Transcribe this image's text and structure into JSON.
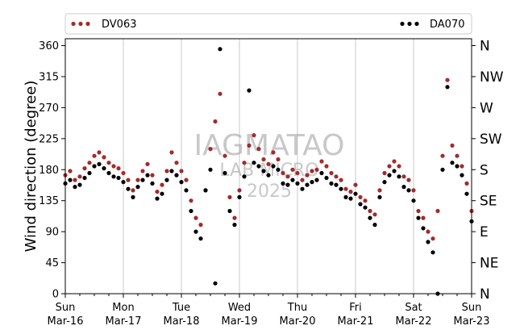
{
  "chart_data": {
    "type": "scatter",
    "ylabel": "Wind direction (degree)",
    "ylim": [
      0,
      370
    ],
    "yticks": [
      0,
      45,
      90,
      135,
      180,
      225,
      270,
      315,
      360
    ],
    "y2_labels": [
      {
        "value": 0,
        "label": "N"
      },
      {
        "value": 45,
        "label": "NE"
      },
      {
        "value": 90,
        "label": "E"
      },
      {
        "value": 135,
        "label": "SE"
      },
      {
        "value": 180,
        "label": "S"
      },
      {
        "value": 225,
        "label": "SW"
      },
      {
        "value": 270,
        "label": "W"
      },
      {
        "value": 315,
        "label": "NW"
      },
      {
        "value": 360,
        "label": "N"
      }
    ],
    "xlim": [
      "2025-03-16",
      "2025-03-23"
    ],
    "xticks": [
      {
        "day": "Sun",
        "date": "Mar-16"
      },
      {
        "day": "Mon",
        "date": "Mar-17"
      },
      {
        "day": "Tue",
        "date": "Mar-18"
      },
      {
        "day": "Wed",
        "date": "Mar-19"
      },
      {
        "day": "Thu",
        "date": "Mar-20"
      },
      {
        "day": "Fri",
        "date": "Mar-21"
      },
      {
        "day": "Sat",
        "date": "Mar-22"
      },
      {
        "day": "Sun",
        "date": "Mar-23"
      }
    ],
    "grid": "vertical",
    "legend_position": "top",
    "watermark": [
      "IAGMATAO",
      "LAB MICRO",
      "2025"
    ],
    "series": [
      {
        "name": "DV063",
        "color": "#a52a2a",
        "points": [
          [
            "2025-03-16T00:00",
            172
          ],
          [
            "2025-03-16T02:00",
            178
          ],
          [
            "2025-03-16T04:00",
            165
          ],
          [
            "2025-03-16T06:00",
            170
          ],
          [
            "2025-03-16T08:00",
            182
          ],
          [
            "2025-03-16T10:00",
            190
          ],
          [
            "2025-03-16T12:00",
            200
          ],
          [
            "2025-03-16T14:00",
            205
          ],
          [
            "2025-03-16T16:00",
            198
          ],
          [
            "2025-03-16T18:00",
            190
          ],
          [
            "2025-03-16T20:00",
            185
          ],
          [
            "2025-03-16T22:00",
            182
          ],
          [
            "2025-03-17T00:00",
            175
          ],
          [
            "2025-03-17T02:00",
            165
          ],
          [
            "2025-03-17T04:00",
            150
          ],
          [
            "2025-03-17T06:00",
            165
          ],
          [
            "2025-03-17T08:00",
            178
          ],
          [
            "2025-03-17T10:00",
            188
          ],
          [
            "2025-03-17T12:00",
            172
          ],
          [
            "2025-03-17T14:00",
            148
          ],
          [
            "2025-03-17T16:00",
            158
          ],
          [
            "2025-03-17T18:00",
            178
          ],
          [
            "2025-03-17T20:00",
            205
          ],
          [
            "2025-03-17T22:00",
            190
          ],
          [
            "2025-03-18T00:00",
            178
          ],
          [
            "2025-03-18T02:00",
            165
          ],
          [
            "2025-03-18T04:00",
            135
          ],
          [
            "2025-03-18T06:00",
            110
          ],
          [
            "2025-03-18T08:00",
            100
          ],
          [
            "2025-03-18T10:00",
            150
          ],
          [
            "2025-03-18T12:00",
            210
          ],
          [
            "2025-03-18T14:00",
            250
          ],
          [
            "2025-03-18T16:00",
            290
          ],
          [
            "2025-03-18T18:00",
            200
          ],
          [
            "2025-03-18T20:00",
            140
          ],
          [
            "2025-03-18T22:00",
            110
          ],
          [
            "2025-03-19T00:00",
            150
          ],
          [
            "2025-03-19T02:00",
            190
          ],
          [
            "2025-03-19T04:00",
            215
          ],
          [
            "2025-03-19T06:00",
            230
          ],
          [
            "2025-03-19T08:00",
            210
          ],
          [
            "2025-03-19T10:00",
            195
          ],
          [
            "2025-03-19T12:00",
            188
          ],
          [
            "2025-03-19T14:00",
            205
          ],
          [
            "2025-03-19T16:00",
            195
          ],
          [
            "2025-03-19T18:00",
            175
          ],
          [
            "2025-03-19T20:00",
            170
          ],
          [
            "2025-03-19T22:00",
            180
          ],
          [
            "2025-03-20T00:00",
            175
          ],
          [
            "2025-03-20T02:00",
            165
          ],
          [
            "2025-03-20T04:00",
            172
          ],
          [
            "2025-03-20T06:00",
            178
          ],
          [
            "2025-03-20T08:00",
            180
          ],
          [
            "2025-03-20T10:00",
            192
          ],
          [
            "2025-03-20T12:00",
            185
          ],
          [
            "2025-03-20T14:00",
            175
          ],
          [
            "2025-03-20T16:00",
            170
          ],
          [
            "2025-03-20T18:00",
            165
          ],
          [
            "2025-03-20T20:00",
            152
          ],
          [
            "2025-03-20T22:00",
            148
          ],
          [
            "2025-03-21T00:00",
            158
          ],
          [
            "2025-03-21T02:00",
            140
          ],
          [
            "2025-03-21T04:00",
            135
          ],
          [
            "2025-03-21T06:00",
            120
          ],
          [
            "2025-03-21T08:00",
            115
          ],
          [
            "2025-03-21T10:00",
            150
          ],
          [
            "2025-03-21T12:00",
            175
          ],
          [
            "2025-03-21T14:00",
            185
          ],
          [
            "2025-03-21T16:00",
            192
          ],
          [
            "2025-03-21T18:00",
            185
          ],
          [
            "2025-03-21T20:00",
            170
          ],
          [
            "2025-03-21T22:00",
            165
          ],
          [
            "2025-03-22T00:00",
            150
          ],
          [
            "2025-03-22T02:00",
            120
          ],
          [
            "2025-03-22T04:00",
            110
          ],
          [
            "2025-03-22T06:00",
            90
          ],
          [
            "2025-03-22T08:00",
            80
          ],
          [
            "2025-03-22T10:00",
            120
          ],
          [
            "2025-03-22T12:00",
            200
          ],
          [
            "2025-03-22T14:00",
            310
          ],
          [
            "2025-03-22T16:00",
            215
          ],
          [
            "2025-03-22T18:00",
            200
          ],
          [
            "2025-03-22T20:00",
            185
          ],
          [
            "2025-03-22T22:00",
            160
          ],
          [
            "2025-03-23T00:00",
            120
          ]
        ]
      },
      {
        "name": "DA070",
        "color": "#000000",
        "points": [
          [
            "2025-03-16T00:00",
            160
          ],
          [
            "2025-03-16T02:00",
            165
          ],
          [
            "2025-03-16T04:00",
            155
          ],
          [
            "2025-03-16T06:00",
            158
          ],
          [
            "2025-03-16T08:00",
            168
          ],
          [
            "2025-03-16T10:00",
            175
          ],
          [
            "2025-03-16T12:00",
            185
          ],
          [
            "2025-03-16T14:00",
            188
          ],
          [
            "2025-03-16T16:00",
            182
          ],
          [
            "2025-03-16T18:00",
            175
          ],
          [
            "2025-03-16T20:00",
            170
          ],
          [
            "2025-03-16T22:00",
            168
          ],
          [
            "2025-03-17T00:00",
            162
          ],
          [
            "2025-03-17T02:00",
            152
          ],
          [
            "2025-03-17T04:00",
            140
          ],
          [
            "2025-03-17T06:00",
            155
          ],
          [
            "2025-03-17T08:00",
            165
          ],
          [
            "2025-03-17T10:00",
            172
          ],
          [
            "2025-03-17T12:00",
            160
          ],
          [
            "2025-03-17T14:00",
            138
          ],
          [
            "2025-03-17T16:00",
            145
          ],
          [
            "2025-03-17T18:00",
            165
          ],
          [
            "2025-03-17T20:00",
            178
          ],
          [
            "2025-03-17T22:00",
            172
          ],
          [
            "2025-03-18T00:00",
            162
          ],
          [
            "2025-03-18T02:00",
            150
          ],
          [
            "2025-03-18T04:00",
            120
          ],
          [
            "2025-03-18T06:00",
            90
          ],
          [
            "2025-03-18T08:00",
            80
          ],
          [
            "2025-03-18T10:00",
            150
          ],
          [
            "2025-03-18T12:00",
            180
          ],
          [
            "2025-03-18T14:00",
            15
          ],
          [
            "2025-03-18T16:00",
            355
          ],
          [
            "2025-03-18T18:00",
            175
          ],
          [
            "2025-03-18T20:00",
            120
          ],
          [
            "2025-03-18T22:00",
            100
          ],
          [
            "2025-03-19T00:00",
            140
          ],
          [
            "2025-03-19T02:00",
            170
          ],
          [
            "2025-03-19T04:00",
            295
          ],
          [
            "2025-03-19T06:00",
            190
          ],
          [
            "2025-03-19T08:00",
            185
          ],
          [
            "2025-03-19T10:00",
            178
          ],
          [
            "2025-03-19T12:00",
            172
          ],
          [
            "2025-03-19T14:00",
            185
          ],
          [
            "2025-03-19T16:00",
            180
          ],
          [
            "2025-03-19T18:00",
            160
          ],
          [
            "2025-03-19T20:00",
            158
          ],
          [
            "2025-03-19T22:00",
            165
          ],
          [
            "2025-03-20T00:00",
            160
          ],
          [
            "2025-03-20T02:00",
            152
          ],
          [
            "2025-03-20T04:00",
            158
          ],
          [
            "2025-03-20T06:00",
            162
          ],
          [
            "2025-03-20T08:00",
            165
          ],
          [
            "2025-03-20T10:00",
            175
          ],
          [
            "2025-03-20T12:00",
            168
          ],
          [
            "2025-03-20T14:00",
            160
          ],
          [
            "2025-03-20T16:00",
            158
          ],
          [
            "2025-03-20T18:00",
            152
          ],
          [
            "2025-03-20T20:00",
            140
          ],
          [
            "2025-03-20T22:00",
            138
          ],
          [
            "2025-03-21T00:00",
            145
          ],
          [
            "2025-03-21T02:00",
            130
          ],
          [
            "2025-03-21T04:00",
            125
          ],
          [
            "2025-03-21T06:00",
            110
          ],
          [
            "2025-03-21T08:00",
            100
          ],
          [
            "2025-03-21T10:00",
            140
          ],
          [
            "2025-03-21T12:00",
            162
          ],
          [
            "2025-03-21T14:00",
            172
          ],
          [
            "2025-03-21T16:00",
            178
          ],
          [
            "2025-03-21T18:00",
            170
          ],
          [
            "2025-03-21T20:00",
            155
          ],
          [
            "2025-03-21T22:00",
            150
          ],
          [
            "2025-03-22T00:00",
            135
          ],
          [
            "2025-03-22T02:00",
            110
          ],
          [
            "2025-03-22T04:00",
            95
          ],
          [
            "2025-03-22T06:00",
            75
          ],
          [
            "2025-03-22T08:00",
            60
          ],
          [
            "2025-03-22T10:00",
            0
          ],
          [
            "2025-03-22T12:00",
            180
          ],
          [
            "2025-03-22T14:00",
            300
          ],
          [
            "2025-03-22T16:00",
            190
          ],
          [
            "2025-03-22T18:00",
            185
          ],
          [
            "2025-03-22T20:00",
            172
          ],
          [
            "2025-03-22T22:00",
            145
          ],
          [
            "2025-03-23T00:00",
            105
          ]
        ]
      }
    ]
  }
}
